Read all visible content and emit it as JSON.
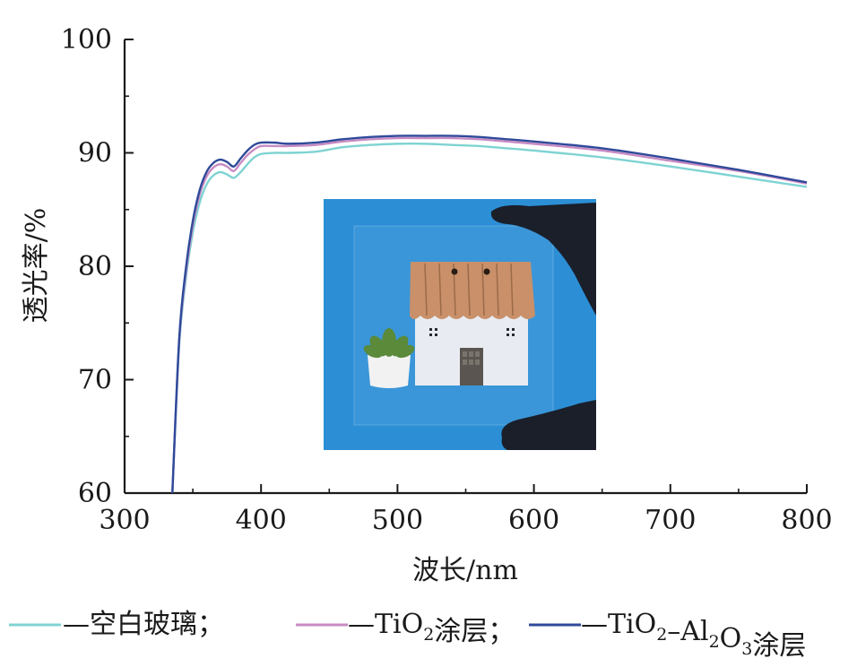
{
  "chart_data": {
    "type": "line",
    "xlabel": "波长/nm",
    "ylabel": "透光率/%",
    "xlim": [
      300,
      800
    ],
    "ylim": [
      60,
      100
    ],
    "x_ticks": [
      300,
      400,
      500,
      600,
      700,
      800
    ],
    "y_ticks": [
      60,
      70,
      80,
      90,
      100
    ],
    "grid": false,
    "legend_position": "bottom",
    "series": [
      {
        "name": "空白玻璃",
        "color": "#7fd3d3",
        "x": [
          335,
          340,
          345,
          350,
          355,
          360,
          365,
          370,
          375,
          380,
          385,
          390,
          395,
          400,
          410,
          420,
          440,
          460,
          480,
          500,
          520,
          540,
          560,
          580,
          600,
          650,
          700,
          750,
          800
        ],
        "y": [
          60.0,
          73.0,
          79.0,
          83.0,
          85.6,
          87.2,
          88.0,
          88.3,
          88.1,
          87.8,
          88.3,
          89.0,
          89.6,
          89.9,
          90.0,
          90.0,
          90.1,
          90.5,
          90.7,
          90.8,
          90.8,
          90.7,
          90.6,
          90.4,
          90.2,
          89.6,
          88.8,
          87.9,
          87.0
        ]
      },
      {
        "name": "TiO2涂层",
        "color": "#c78bc3",
        "x": [
          335,
          340,
          345,
          350,
          355,
          360,
          365,
          370,
          375,
          380,
          385,
          390,
          395,
          400,
          410,
          420,
          440,
          460,
          480,
          500,
          520,
          540,
          560,
          580,
          600,
          650,
          700,
          750,
          800
        ],
        "y": [
          60.0,
          73.3,
          79.5,
          83.6,
          86.3,
          87.9,
          88.7,
          89.0,
          88.8,
          88.4,
          89.1,
          89.8,
          90.3,
          90.6,
          90.6,
          90.6,
          90.7,
          91.0,
          91.2,
          91.3,
          91.3,
          91.3,
          91.2,
          91.0,
          90.8,
          90.2,
          89.3,
          88.4,
          87.3
        ]
      },
      {
        "name": "TiO2-Al2O3涂层",
        "color": "#2f4a9a",
        "x": [
          335,
          340,
          345,
          350,
          355,
          360,
          365,
          370,
          375,
          380,
          385,
          390,
          395,
          400,
          410,
          420,
          440,
          460,
          480,
          500,
          520,
          540,
          560,
          580,
          600,
          650,
          700,
          750,
          800
        ],
        "y": [
          60.0,
          73.6,
          79.9,
          84.0,
          86.7,
          88.3,
          89.1,
          89.4,
          89.2,
          88.8,
          89.5,
          90.2,
          90.7,
          90.9,
          90.9,
          90.8,
          90.9,
          91.2,
          91.4,
          91.5,
          91.5,
          91.5,
          91.4,
          91.2,
          91.0,
          90.4,
          89.5,
          88.5,
          87.4
        ]
      }
    ]
  },
  "legend": [
    {
      "prefix": "—空白玻璃；",
      "parts": [],
      "color": "#7fd3d3"
    },
    {
      "prefix": "—TiO",
      "sub1": "2",
      "suffix": "涂层；",
      "color": "#c78bc3"
    },
    {
      "prefix": "—TiO",
      "sub1": "2",
      "mid": "–Al",
      "sub2": "2",
      "mid2": "O",
      "sub3": "3",
      "suffix": "涂层",
      "color": "#2f4a9a"
    }
  ],
  "inset": {
    "background": "#2c8fd6",
    "roof_color": "#c9906a",
    "house_color": "#e8ecf2",
    "door_color": "#5a5550",
    "pot_color": "#f2f2f2",
    "plant_color": "#5a8a3a",
    "glove_color": "#1a1f2a"
  }
}
